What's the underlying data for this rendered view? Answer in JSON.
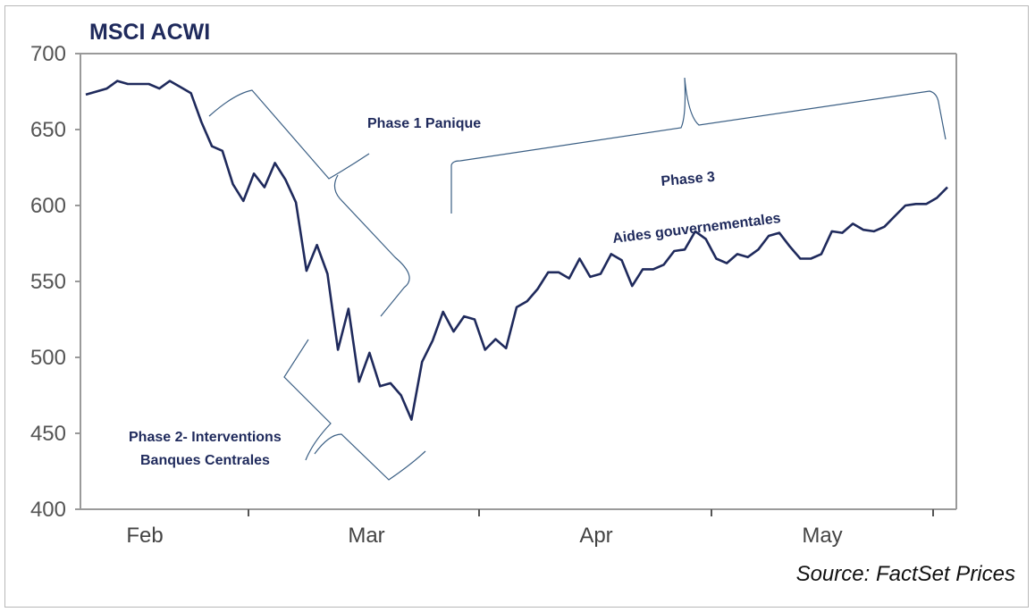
{
  "chart_data": {
    "type": "line",
    "title": "MSCI ACWI",
    "xlabel": "",
    "ylabel": "",
    "ylim": [
      400,
      700
    ],
    "yticks": [
      400,
      450,
      500,
      550,
      600,
      650,
      700
    ],
    "x_tick_labels": [
      "Feb",
      "Mar",
      "Apr",
      "May"
    ],
    "grid": false,
    "series": [
      {
        "values": [
          673,
          675,
          677,
          682,
          680,
          680,
          680,
          677,
          682,
          678,
          674,
          655,
          639,
          636,
          614,
          603,
          621,
          612,
          628,
          617,
          602,
          557,
          574,
          555,
          505,
          532,
          484,
          503,
          481,
          483,
          475,
          459,
          497,
          511,
          530,
          517,
          527,
          525,
          505,
          512,
          506,
          533,
          537,
          545,
          556,
          556,
          552,
          565,
          553,
          555,
          568,
          564,
          547,
          558,
          558,
          561,
          570,
          571,
          583,
          578,
          565,
          562,
          568,
          566,
          571,
          580,
          582,
          573,
          565,
          565,
          568,
          583,
          582,
          588,
          584,
          583,
          586,
          593,
          600,
          601,
          601,
          605,
          612
        ],
        "color": "#1f2a5c"
      }
    ],
    "annotations": [
      {
        "text": "Phase 1 Panique"
      },
      {
        "text": "Phase 2- Interventions"
      },
      {
        "text": "Banques Centrales"
      },
      {
        "text": "Phase 3"
      },
      {
        "text": "Aides gouvernementales"
      }
    ],
    "source": "Source: FactSet Prices"
  },
  "colors": {
    "line": "#1f2a5c",
    "brace": "#3b5f84",
    "axis": "#9a9a9a",
    "title": "#1f2a5c"
  }
}
